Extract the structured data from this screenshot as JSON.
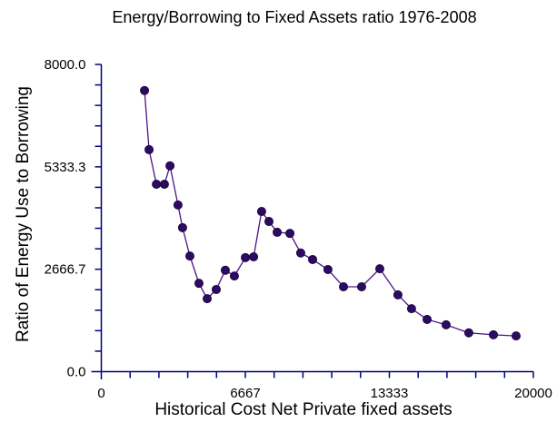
{
  "chart_data": {
    "type": "line",
    "title": "Energy/Borrowing to Fixed Assets ratio 1976-2008",
    "xlabel": "Historical Cost Net Private fixed assets",
    "ylabel": "Ratio of Energy Use to Borrowing",
    "xlim": [
      0,
      20000
    ],
    "ylim": [
      0,
      8000
    ],
    "x_ticks": [
      0,
      6667,
      13333,
      20000
    ],
    "x_tick_labels": [
      "0",
      "6667",
      "13333",
      "20000"
    ],
    "y_ticks": [
      0,
      2666.7,
      5333.3,
      8000
    ],
    "y_tick_labels": [
      "0.0",
      "2666.7",
      "5333.3",
      "8000.0"
    ],
    "minor_tick_divisions": 15,
    "grid": false,
    "legend": null,
    "marker": "circle",
    "series": [
      {
        "name": "Energy/Borrowing to Fixed Assets ratio",
        "points": [
          [
            2000,
            7320
          ],
          [
            2210,
            5780
          ],
          [
            2550,
            4880
          ],
          [
            2920,
            4880
          ],
          [
            3180,
            5360
          ],
          [
            3550,
            4340
          ],
          [
            3760,
            3750
          ],
          [
            4100,
            3010
          ],
          [
            4520,
            2300
          ],
          [
            4900,
            1900
          ],
          [
            5320,
            2140
          ],
          [
            5740,
            2640
          ],
          [
            6160,
            2490
          ],
          [
            6670,
            2970
          ],
          [
            7050,
            2990
          ],
          [
            7420,
            4170
          ],
          [
            7760,
            3910
          ],
          [
            8140,
            3630
          ],
          [
            8730,
            3600
          ],
          [
            9230,
            3090
          ],
          [
            9780,
            2920
          ],
          [
            10490,
            2660
          ],
          [
            11210,
            2210
          ],
          [
            12050,
            2210
          ],
          [
            12890,
            2680
          ],
          [
            13730,
            2000
          ],
          [
            14360,
            1640
          ],
          [
            15080,
            1360
          ],
          [
            15960,
            1220
          ],
          [
            17010,
            1010
          ],
          [
            18150,
            960
          ],
          [
            19200,
            930
          ]
        ]
      }
    ],
    "colors": {
      "axis": "#00007d",
      "line": "#4b1486",
      "marker_fill": "#2d0b63",
      "marker_edge": "#1a0540",
      "text": "#000000",
      "background": "#ffffff"
    }
  }
}
